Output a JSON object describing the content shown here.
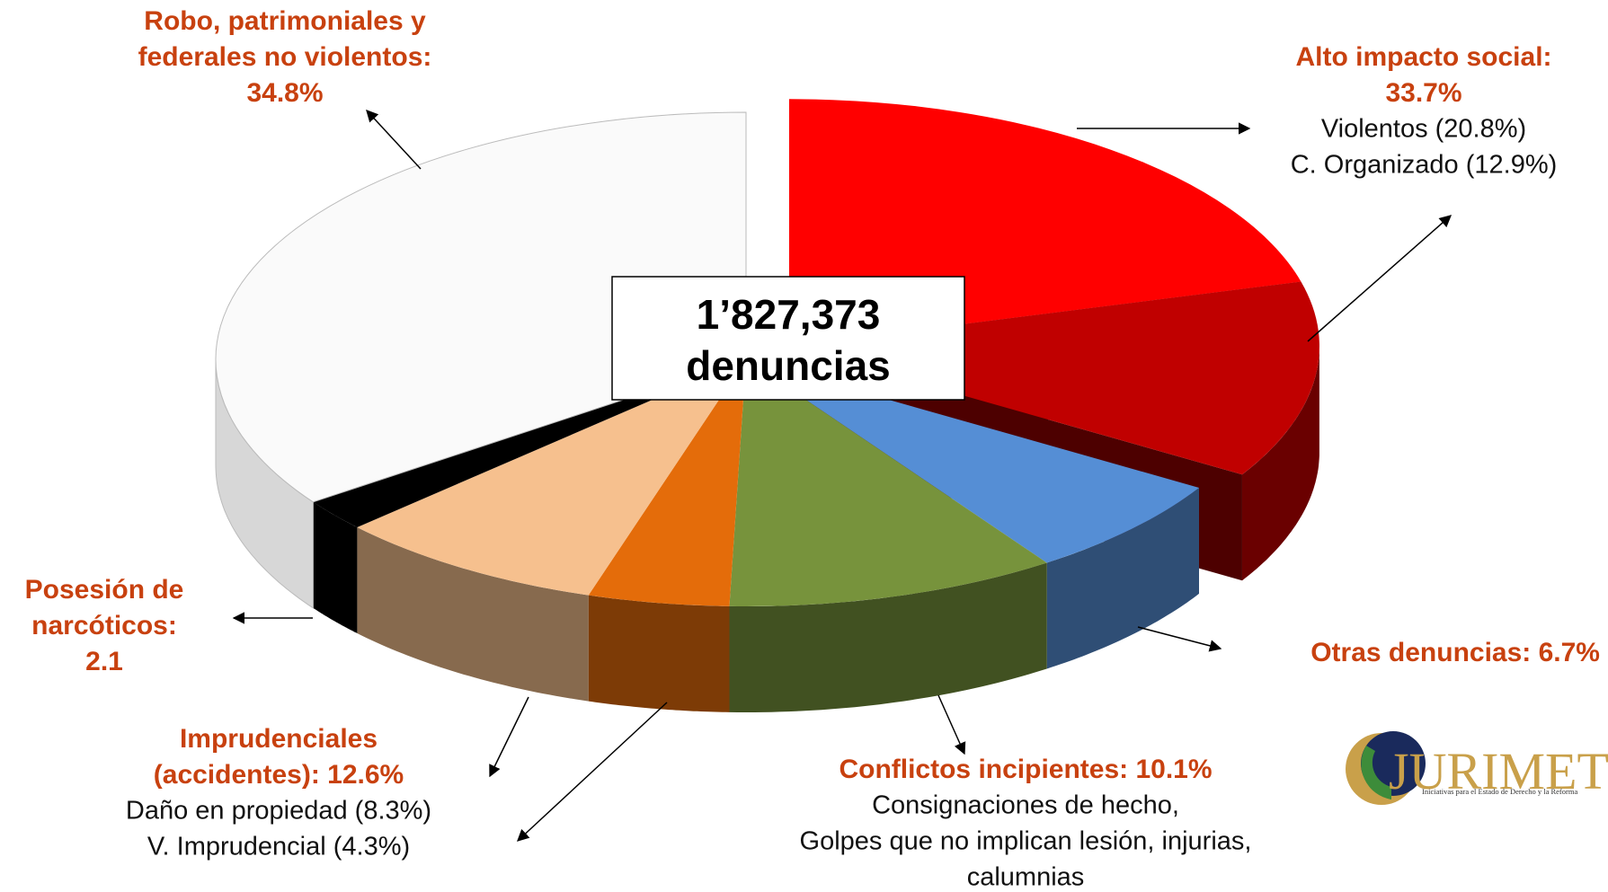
{
  "chart_data": {
    "type": "pie3d",
    "values": [
      20.8,
      12.9,
      6.7,
      10.1,
      4.3,
      8.3,
      2.1,
      34.8
    ],
    "colors": [
      "#ff0000",
      "#c00000",
      "#558ed5",
      "#77933c",
      "#e46c0a",
      "#f6c08e",
      "#000000",
      "#fafafa"
    ],
    "exploded": [
      0,
      1
    ],
    "center_label": [
      "1’827,373",
      "denuncias"
    ],
    "annotations": [
      {
        "title": [
          "Robo, patrimoniales y",
          "federales no violentos:",
          "34.8%"
        ],
        "detail": []
      },
      {
        "title": [
          "Alto impacto social:",
          "33.7%"
        ],
        "detail": [
          "Violentos (20.8%)",
          "C. Organizado (12.9%)"
        ]
      },
      {
        "title": [
          "Otras denuncias: 6.7%"
        ],
        "detail": []
      },
      {
        "title": [
          "Conflictos incipientes: 10.1%"
        ],
        "detail": [
          "Consignaciones de hecho,",
          "Golpes que no implican lesión, injurias,",
          "calumnias"
        ]
      },
      {
        "title": [
          "Imprudenciales",
          "(accidentes): 12.6%"
        ],
        "detail": [
          "Daño en propiedad (8.3%)",
          "V. Imprudencial (4.3%)"
        ]
      },
      {
        "title": [
          "Posesión de",
          "narcóticos:",
          "2.1"
        ],
        "detail": []
      }
    ],
    "logo": {
      "name": "JURIMETRÍA",
      "tagline": "Iniciativas para el Estado de Derecho y la Reforma"
    }
  }
}
